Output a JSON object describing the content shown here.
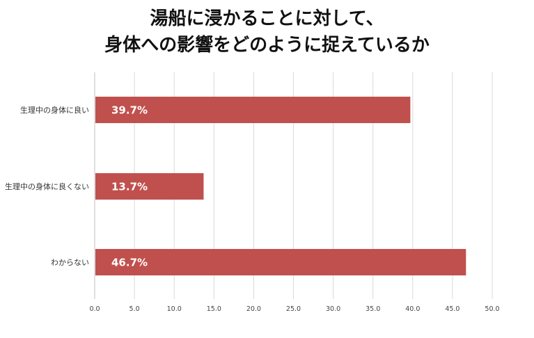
{
  "chart_data": {
    "type": "bar",
    "orientation": "horizontal",
    "title_lines": [
      "湯船に浸かることに対して、",
      "身体への影響をどのように捉えているか"
    ],
    "categories": [
      "生理中の身体に良い",
      "生理中の身体に良くない",
      "わからない"
    ],
    "values": [
      39.7,
      13.7,
      46.7
    ],
    "data_labels": [
      "39.7%",
      "13.7%",
      "46.7%"
    ],
    "xlim": [
      0,
      50
    ],
    "x_ticks": [
      "0.0",
      "5.0",
      "10.0",
      "15.0",
      "20.0",
      "25.0",
      "30.0",
      "35.0",
      "40.0",
      "45.0",
      "50.0"
    ],
    "x_tick_values": [
      0,
      5,
      10,
      15,
      20,
      25,
      30,
      35,
      40,
      45,
      50
    ],
    "grid": true,
    "legend": "none",
    "bar_color": "#c0504d",
    "grid_color": "#d9d9d9",
    "axis_color": "#bfbfbf"
  }
}
